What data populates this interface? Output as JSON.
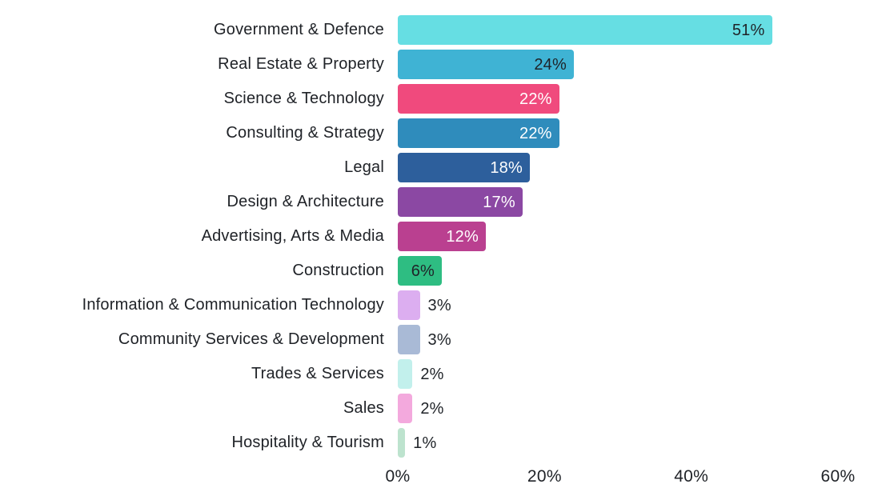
{
  "chart_data": {
    "type": "bar",
    "orientation": "horizontal",
    "title": "",
    "xlabel": "",
    "ylabel": "",
    "xlim": [
      0,
      60
    ],
    "grid": false,
    "legend": false,
    "x_ticks": [
      {
        "value": 0,
        "label": "0%"
      },
      {
        "value": 20,
        "label": "20%"
      },
      {
        "value": 40,
        "label": "40%"
      },
      {
        "value": 60,
        "label": "60%"
      }
    ],
    "categories": [
      "Government & Defence",
      "Real Estate & Property",
      "Science & Technology",
      "Consulting & Strategy",
      "Legal",
      "Design & Architecture",
      "Advertising, Arts & Media",
      "Construction",
      "Information & Communication Technology",
      "Community Services & Development",
      "Trades & Services",
      "Sales",
      "Hospitality & Tourism"
    ],
    "values": [
      51,
      24,
      22,
      22,
      18,
      17,
      12,
      6,
      3,
      3,
      2,
      2,
      1
    ],
    "bars": [
      {
        "category": "Government & Defence",
        "value": 51,
        "label": "51%",
        "color": "#66DEE3",
        "label_position": "inside",
        "label_color": "#1F2328"
      },
      {
        "category": "Real Estate & Property",
        "value": 24,
        "label": "24%",
        "color": "#3FB3D4",
        "label_position": "inside",
        "label_color": "#1F2328"
      },
      {
        "category": "Science & Technology",
        "value": 22,
        "label": "22%",
        "color": "#F04A7D",
        "label_position": "inside",
        "label_color": "#FFFFFF"
      },
      {
        "category": "Consulting & Strategy",
        "value": 22,
        "label": "22%",
        "color": "#2F8CBC",
        "label_position": "inside",
        "label_color": "#FFFFFF"
      },
      {
        "category": "Legal",
        "value": 18,
        "label": "18%",
        "color": "#2D5F9C",
        "label_position": "inside",
        "label_color": "#FFFFFF"
      },
      {
        "category": "Design & Architecture",
        "value": 17,
        "label": "17%",
        "color": "#8B48A3",
        "label_position": "inside",
        "label_color": "#FFFFFF"
      },
      {
        "category": "Advertising, Arts & Media",
        "value": 12,
        "label": "12%",
        "color": "#BA4090",
        "label_position": "inside",
        "label_color": "#FFFFFF"
      },
      {
        "category": "Construction",
        "value": 6,
        "label": "6%",
        "color": "#2EBD82",
        "label_position": "inside",
        "label_color": "#1F2328"
      },
      {
        "category": "Information & Communication Technology",
        "value": 3,
        "label": "3%",
        "color": "#DCAEF0",
        "label_position": "outside",
        "label_color": "#1F2328"
      },
      {
        "category": "Community Services & Development",
        "value": 3,
        "label": "3%",
        "color": "#A9BAD6",
        "label_position": "outside",
        "label_color": "#1F2328"
      },
      {
        "category": "Trades & Services",
        "value": 2,
        "label": "2%",
        "color": "#C2F0EC",
        "label_position": "outside",
        "label_color": "#1F2328"
      },
      {
        "category": "Sales",
        "value": 2,
        "label": "2%",
        "color": "#F3A9DD",
        "label_position": "outside",
        "label_color": "#1F2328"
      },
      {
        "category": "Hospitality & Tourism",
        "value": 1,
        "label": "1%",
        "color": "#BDE3CE",
        "label_position": "outside",
        "label_color": "#1F2328"
      }
    ]
  },
  "colors": {
    "background": "#FFFFFF",
    "text": "#202328"
  }
}
